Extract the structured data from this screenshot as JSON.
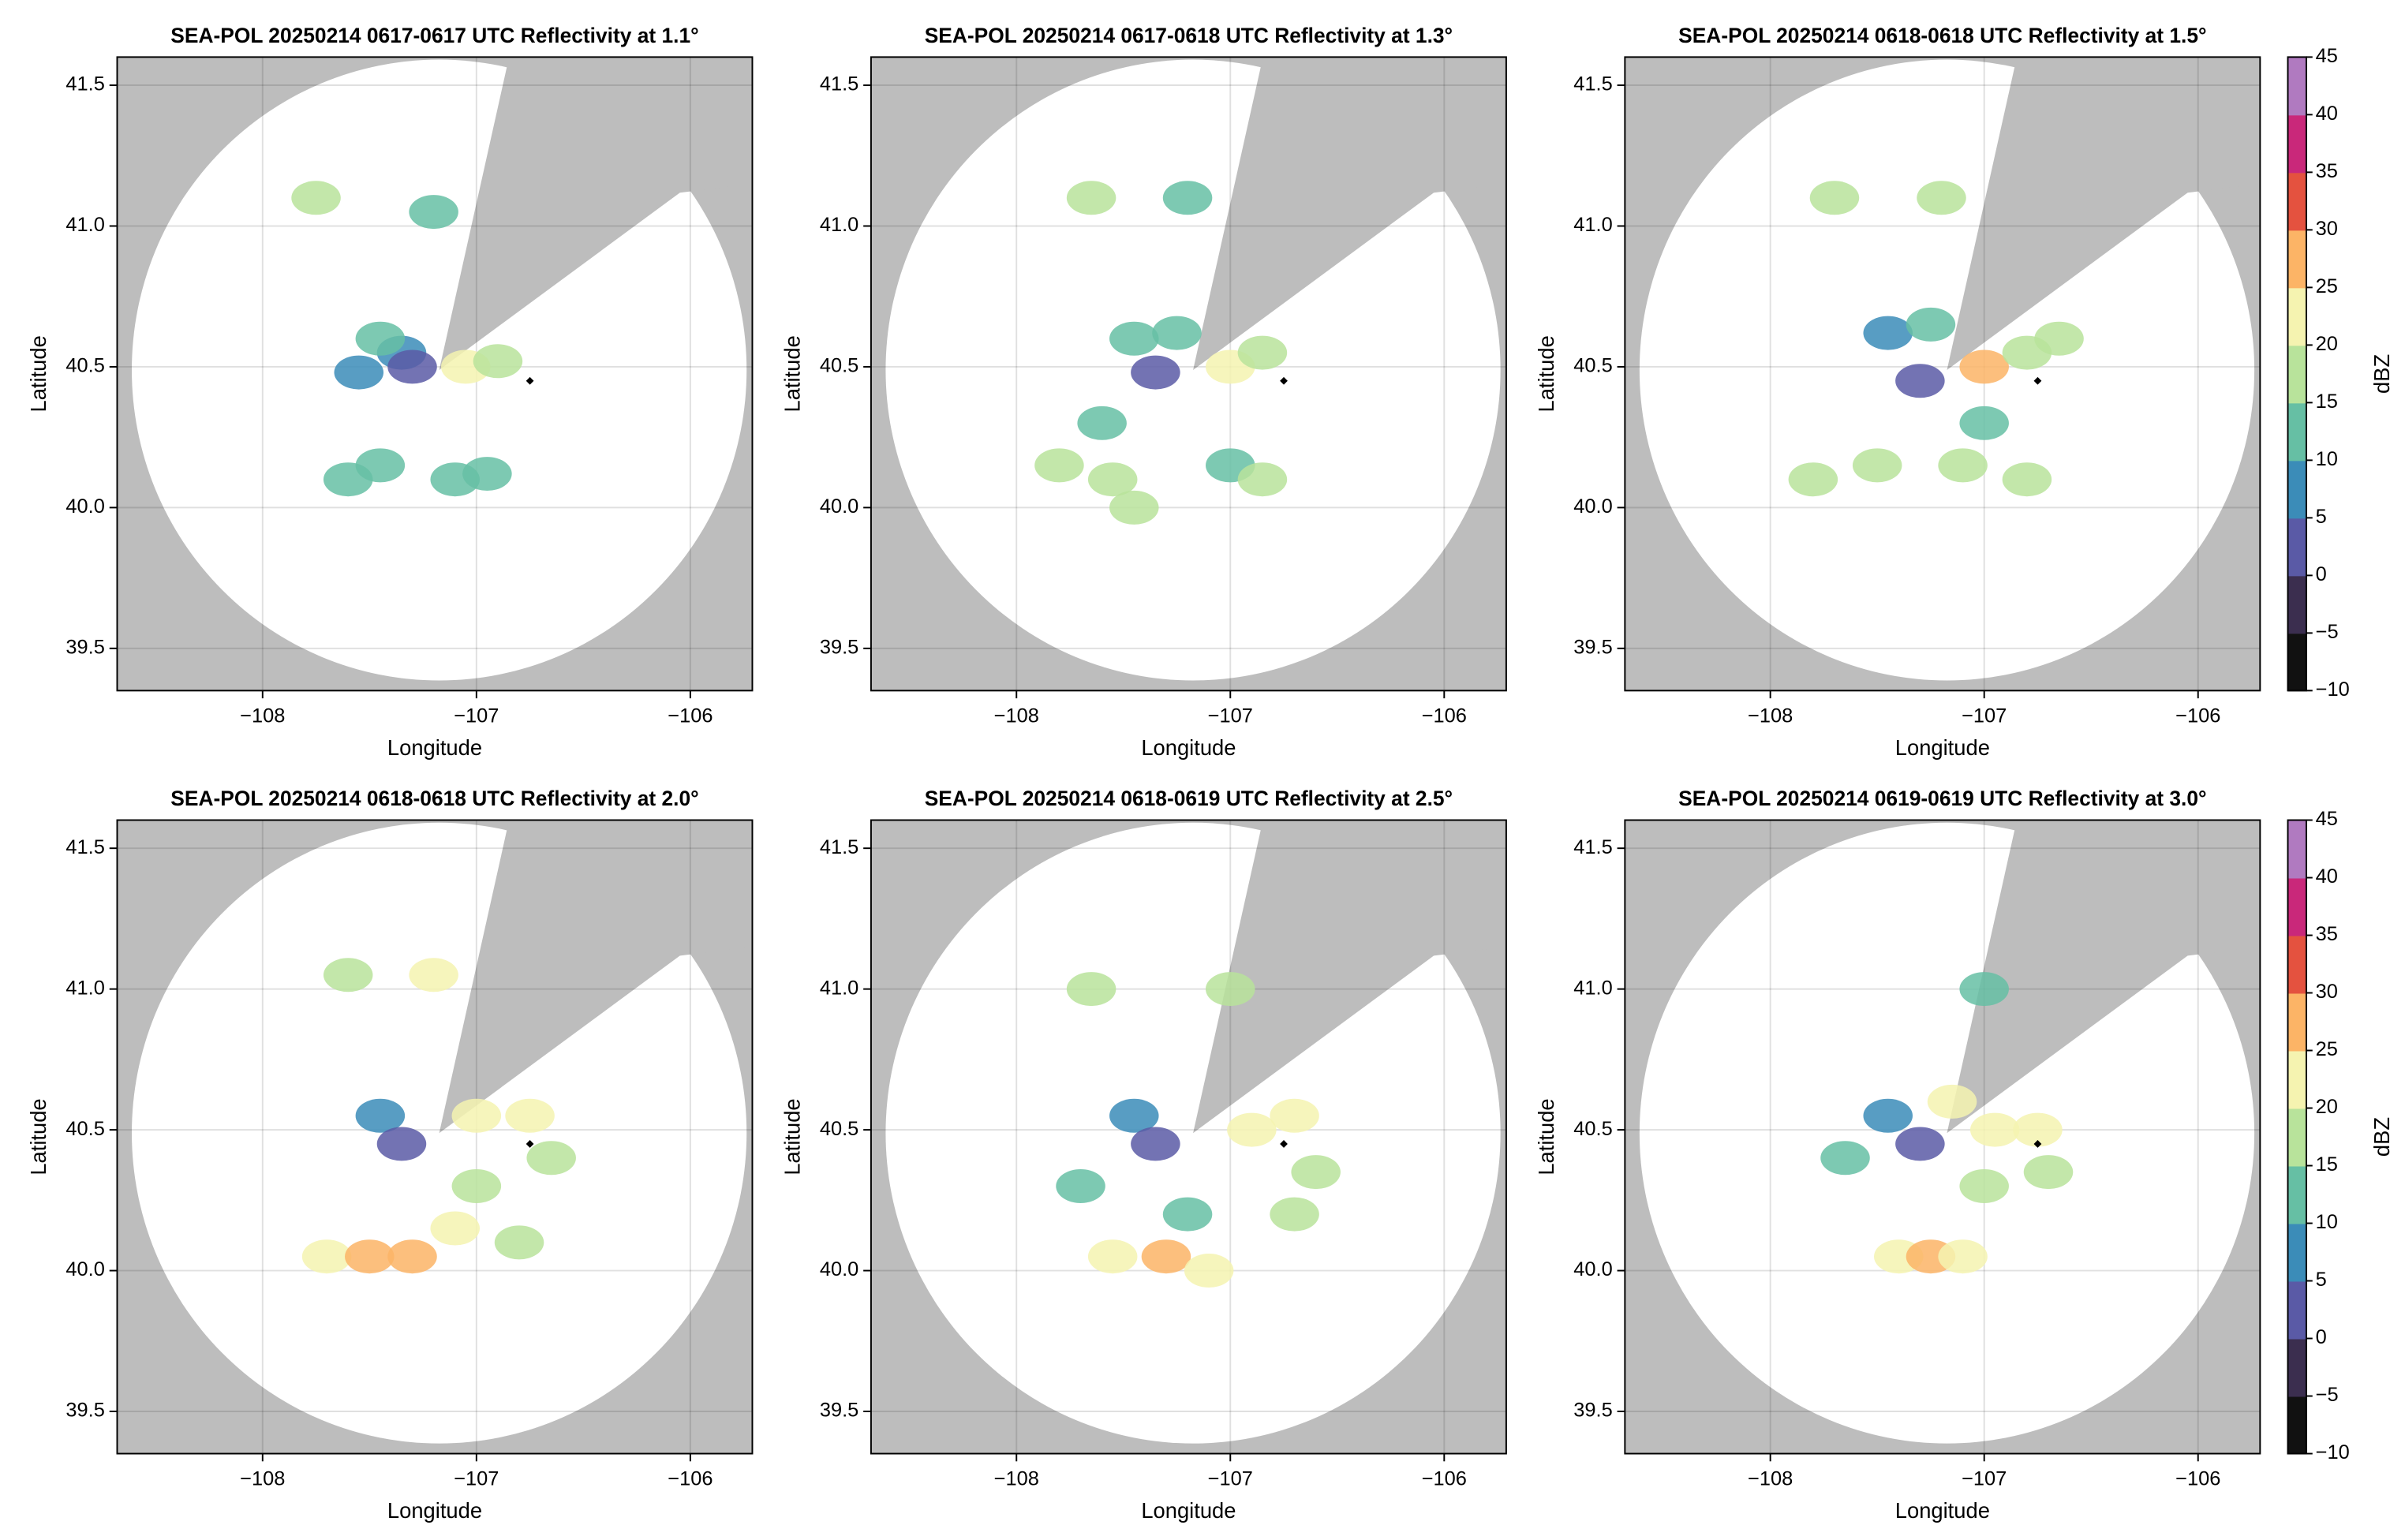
{
  "chart_data": [
    {
      "type": "ppi",
      "title": "SEA-POL 20250214 0617-0617 UTC Reflectivity at 1.1°",
      "xlabel": "Longitude",
      "ylabel": "Latitude",
      "xlim": [
        -108.68,
        -105.71
      ],
      "ylim": [
        39.35,
        41.6
      ],
      "xticks": [
        {
          "value": -108,
          "label": "−108"
        },
        {
          "value": -107,
          "label": "−107"
        },
        {
          "value": -106,
          "label": "−106"
        }
      ],
      "yticks": [
        39.5,
        {
          "value": 40,
          "label": "40.0"
        },
        40.5,
        {
          "value": 41,
          "label": "41.0"
        },
        41.5
      ],
      "grid": true,
      "clim": [
        -10,
        45
      ],
      "colormap": [
        "#111111",
        "#3b2e4f",
        "#5a5aa6",
        "#3b8cb8",
        "#66bfa4",
        "#b8e39b",
        "#f5f3b0",
        "#fcb466",
        "#e4523f",
        "#c9287a",
        "#b07ac0"
      ],
      "marker": {
        "x": -106.75,
        "y": 40.45
      },
      "x": [
        -107.35,
        -107.45,
        -107.3,
        -107.05,
        -106.9,
        -107.6,
        -107.45,
        -106.95,
        -107.75,
        -107.2,
        -107.1,
        -107.55
      ],
      "y": [
        40.55,
        40.6,
        40.5,
        40.5,
        40.52,
        40.1,
        40.15,
        40.12,
        41.1,
        41.05,
        40.1,
        40.48
      ],
      "values": [
        8,
        10,
        0,
        20,
        15,
        14,
        12,
        12,
        15,
        12,
        10,
        5
      ]
    },
    {
      "type": "ppi",
      "title": "SEA-POL 20250214 0617-0618 UTC Reflectivity at 1.3°",
      "xlabel": "Longitude",
      "ylabel": "Latitude",
      "xlim": [
        -108.68,
        -105.71
      ],
      "ylim": [
        39.35,
        41.6
      ],
      "xticks": [
        {
          "value": -108,
          "label": "−108"
        },
        {
          "value": -107,
          "label": "−107"
        },
        {
          "value": -106,
          "label": "−106"
        }
      ],
      "yticks": [
        39.5,
        {
          "value": 40,
          "label": "40.0"
        },
        40.5,
        {
          "value": 41,
          "label": "41.0"
        },
        41.5
      ],
      "grid": true,
      "clim": [
        -10,
        45
      ],
      "colormap": [
        "#111111",
        "#3b2e4f",
        "#5a5aa6",
        "#3b8cb8",
        "#66bfa4",
        "#b8e39b",
        "#f5f3b0",
        "#fcb466",
        "#e4523f",
        "#c9287a",
        "#b07ac0"
      ],
      "marker": {
        "x": -106.75,
        "y": 40.45
      },
      "x": [
        -107.45,
        -107.25,
        -107.35,
        -107.0,
        -106.85,
        -107.8,
        -107.55,
        -107.45,
        -107.0,
        -106.85,
        -107.65,
        -107.2,
        -107.6
      ],
      "y": [
        40.6,
        40.62,
        40.48,
        40.5,
        40.55,
        40.15,
        40.1,
        40.0,
        40.15,
        40.1,
        41.1,
        41.1,
        40.3
      ],
      "values": [
        10,
        12,
        2,
        22,
        15,
        15,
        16,
        15,
        14,
        16,
        15,
        14,
        10
      ]
    },
    {
      "type": "ppi",
      "title": "SEA-POL 20250214 0618-0618 UTC Reflectivity at 1.5°",
      "xlabel": "Longitude",
      "ylabel": "Latitude",
      "xlim": [
        -108.68,
        -105.71
      ],
      "ylim": [
        39.35,
        41.6
      ],
      "xticks": [
        {
          "value": -108,
          "label": "−108"
        },
        {
          "value": -107,
          "label": "−107"
        },
        {
          "value": -106,
          "label": "−106"
        }
      ],
      "yticks": [
        39.5,
        {
          "value": 40,
          "label": "40.0"
        },
        40.5,
        {
          "value": 41,
          "label": "41.0"
        },
        41.5
      ],
      "grid": true,
      "clim": [
        -10,
        45
      ],
      "colormap": [
        "#111111",
        "#3b2e4f",
        "#5a5aa6",
        "#3b8cb8",
        "#66bfa4",
        "#b8e39b",
        "#f5f3b0",
        "#fcb466",
        "#e4523f",
        "#c9287a",
        "#b07ac0"
      ],
      "marker": {
        "x": -106.75,
        "y": 40.45
      },
      "x": [
        -107.45,
        -107.25,
        -107.3,
        -107.0,
        -106.8,
        -106.65,
        -107.8,
        -107.5,
        -107.1,
        -106.8,
        -107.7,
        -107.2,
        -107.0
      ],
      "y": [
        40.62,
        40.65,
        40.45,
        40.5,
        40.55,
        40.6,
        40.1,
        40.15,
        40.15,
        40.1,
        41.1,
        41.1,
        40.3
      ],
      "values": [
        8,
        14,
        0,
        26,
        18,
        15,
        17,
        18,
        15,
        16,
        16,
        15,
        12
      ],
      "colorbar": {
        "label": "dBZ",
        "ticks": [
          {
            "value": -10,
            "label": "−10"
          },
          {
            "value": -5,
            "label": "−5"
          },
          0,
          5,
          10,
          15,
          20,
          25,
          30,
          35,
          40,
          45
        ]
      }
    },
    {
      "type": "ppi",
      "title": "SEA-POL 20250214 0618-0618 UTC Reflectivity at 2.0°",
      "xlabel": "Longitude",
      "ylabel": "Latitude",
      "xlim": [
        -108.68,
        -105.71
      ],
      "ylim": [
        39.35,
        41.6
      ],
      "xticks": [
        {
          "value": -108,
          "label": "−108"
        },
        {
          "value": -107,
          "label": "−107"
        },
        {
          "value": -106,
          "label": "−106"
        }
      ],
      "yticks": [
        39.5,
        {
          "value": 40,
          "label": "40.0"
        },
        40.5,
        {
          "value": 41,
          "label": "41.0"
        },
        41.5
      ],
      "grid": true,
      "clim": [
        -10,
        45
      ],
      "colormap": [
        "#111111",
        "#3b2e4f",
        "#5a5aa6",
        "#3b8cb8",
        "#66bfa4",
        "#b8e39b",
        "#f5f3b0",
        "#fcb466",
        "#e4523f",
        "#c9287a",
        "#b07ac0"
      ],
      "marker": {
        "x": -106.75,
        "y": 40.45
      },
      "x": [
        -107.6,
        -107.2,
        -107.45,
        -107.35,
        -107.0,
        -106.75,
        -106.65,
        -107.7,
        -107.5,
        -107.3,
        -107.1,
        -106.8,
        -107.0
      ],
      "y": [
        41.05,
        41.05,
        40.55,
        40.45,
        40.55,
        40.55,
        40.4,
        40.05,
        40.05,
        40.05,
        40.15,
        40.1,
        40.3
      ],
      "values": [
        16,
        20,
        8,
        0,
        24,
        22,
        18,
        20,
        27,
        26,
        20,
        15,
        18
      ]
    },
    {
      "type": "ppi",
      "title": "SEA-POL 20250214 0618-0619 UTC Reflectivity at 2.5°",
      "xlabel": "Longitude",
      "ylabel": "Latitude",
      "xlim": [
        -108.68,
        -105.71
      ],
      "ylim": [
        39.35,
        41.6
      ],
      "xticks": [
        {
          "value": -108,
          "label": "−108"
        },
        {
          "value": -107,
          "label": "−107"
        },
        {
          "value": -106,
          "label": "−106"
        }
      ],
      "yticks": [
        39.5,
        {
          "value": 40,
          "label": "40.0"
        },
        40.5,
        {
          "value": 41,
          "label": "41.0"
        },
        41.5
      ],
      "grid": true,
      "clim": [
        -10,
        45
      ],
      "colormap": [
        "#111111",
        "#3b2e4f",
        "#5a5aa6",
        "#3b8cb8",
        "#66bfa4",
        "#b8e39b",
        "#f5f3b0",
        "#fcb466",
        "#e4523f",
        "#c9287a",
        "#b07ac0"
      ],
      "marker": {
        "x": -106.75,
        "y": 40.45
      },
      "x": [
        -107.65,
        -107.0,
        -107.45,
        -107.35,
        -106.9,
        -106.7,
        -106.6,
        -107.55,
        -107.3,
        -107.1,
        -107.2,
        -106.7,
        -107.7
      ],
      "y": [
        41.0,
        41.0,
        40.55,
        40.45,
        40.5,
        40.55,
        40.35,
        40.05,
        40.05,
        40.0,
        40.2,
        40.2,
        40.3
      ],
      "values": [
        15,
        15,
        8,
        2,
        24,
        20,
        17,
        20,
        27,
        22,
        10,
        16,
        12
      ]
    },
    {
      "type": "ppi",
      "title": "SEA-POL 20250214 0619-0619 UTC Reflectivity at 3.0°",
      "xlabel": "Longitude",
      "ylabel": "Latitude",
      "xlim": [
        -108.68,
        -105.71
      ],
      "ylim": [
        39.35,
        41.6
      ],
      "xticks": [
        {
          "value": -108,
          "label": "−108"
        },
        {
          "value": -107,
          "label": "−107"
        },
        {
          "value": -106,
          "label": "−106"
        }
      ],
      "yticks": [
        39.5,
        {
          "value": 40,
          "label": "40.0"
        },
        40.5,
        {
          "value": 41,
          "label": "41.0"
        },
        41.5
      ],
      "grid": true,
      "clim": [
        -10,
        45
      ],
      "colormap": [
        "#111111",
        "#3b2e4f",
        "#5a5aa6",
        "#3b8cb8",
        "#66bfa4",
        "#b8e39b",
        "#f5f3b0",
        "#fcb466",
        "#e4523f",
        "#c9287a",
        "#b07ac0"
      ],
      "marker": {
        "x": -106.75,
        "y": 40.45
      },
      "x": [
        -107.45,
        -107.15,
        -107.3,
        -106.95,
        -106.75,
        -106.7,
        -107.4,
        -107.25,
        -107.1,
        -107.0,
        -107.0,
        -107.65
      ],
      "y": [
        40.55,
        40.6,
        40.45,
        40.5,
        40.5,
        40.35,
        40.05,
        40.05,
        40.05,
        41.0,
        40.3,
        40.4
      ],
      "values": [
        8,
        20,
        2,
        24,
        22,
        18,
        20,
        27,
        20,
        14,
        16,
        12
      ],
      "colorbar": {
        "label": "dBZ",
        "ticks": [
          {
            "value": -10,
            "label": "−10"
          },
          {
            "value": -5,
            "label": "−5"
          },
          0,
          5,
          10,
          15,
          20,
          25,
          30,
          35,
          40,
          45
        ]
      }
    }
  ]
}
